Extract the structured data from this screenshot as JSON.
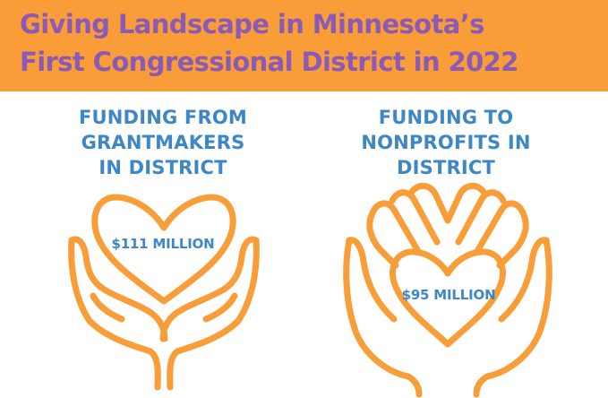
{
  "header": {
    "title_line1": "Giving Landscape in Minnesota’s",
    "title_line2": "First Congressional District in 2022",
    "background_color": "#f89d38",
    "title_color": "#8b5ab6"
  },
  "left_panel": {
    "heading_line1": "FUNDING FROM",
    "heading_line2": "GRANTMAKERS",
    "heading_line3": "IN DISTRICT",
    "amount": "$111 MILLION",
    "icon": "hands-holding-heart-icon"
  },
  "right_panel": {
    "heading_line1": "FUNDING TO",
    "heading_line2": "NONPROFITS IN",
    "heading_line3": "DISTRICT",
    "amount": "$95 MILLION",
    "icon": "hands-giving-heart-icon"
  },
  "colors": {
    "text_blue": "#3d87c6",
    "line_orange": "#f89d38"
  }
}
